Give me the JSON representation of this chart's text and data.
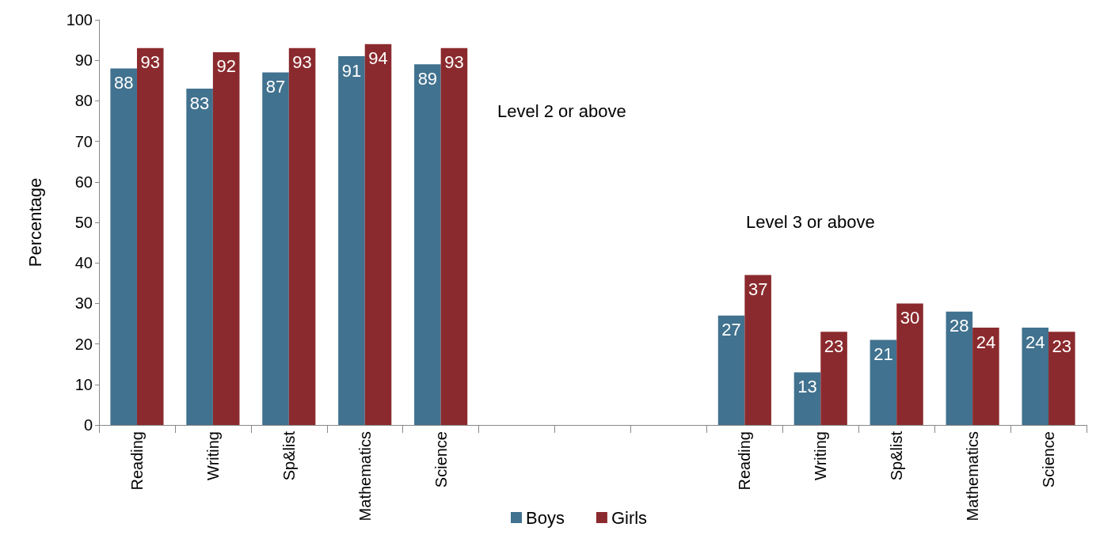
{
  "chart_data": {
    "type": "bar",
    "ylabel": "Percentage",
    "categories": [
      "Reading",
      "Writing",
      "Sp&list",
      "Mathematics",
      "Science",
      null,
      null,
      null,
      "Reading",
      "Writing",
      "Sp&list",
      "Mathematics",
      "Science"
    ],
    "series": [
      {
        "name": "Boys",
        "color": "#41728f",
        "values": [
          88,
          83,
          87,
          91,
          89,
          null,
          null,
          null,
          27,
          13,
          21,
          28,
          24
        ]
      },
      {
        "name": "Girls",
        "color": "#8b2a2e",
        "values": [
          93,
          92,
          93,
          94,
          93,
          null,
          null,
          null,
          37,
          23,
          30,
          24,
          23
        ]
      }
    ],
    "ylim": [
      0,
      100
    ],
    "yticks": [
      0,
      10,
      20,
      30,
      40,
      50,
      60,
      70,
      80,
      90,
      100
    ],
    "grid": false,
    "legend": "bottom",
    "data_labels": true,
    "annotations": [
      "Level 2 or above",
      "Level 3 or above"
    ]
  }
}
